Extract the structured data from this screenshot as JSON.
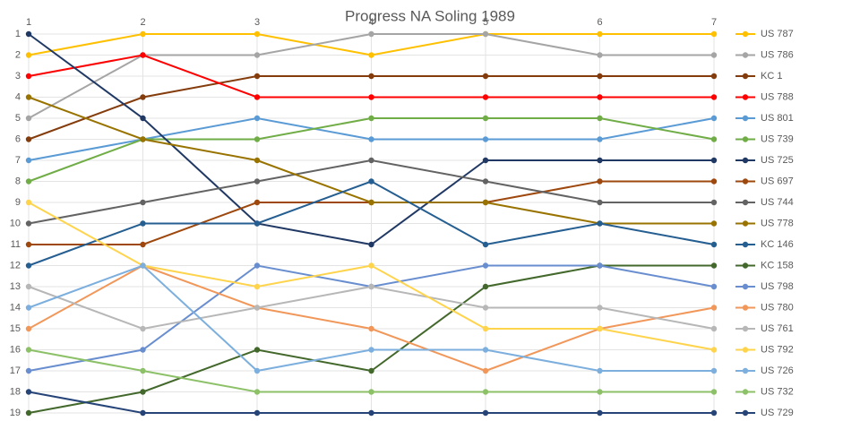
{
  "chart_data": {
    "type": "line",
    "title": "Progress NA Soling 1989",
    "categories": [
      "1",
      "2",
      "3",
      "4",
      "5",
      "6",
      "7"
    ],
    "ylim": [
      19,
      1
    ],
    "yticks": [
      1,
      2,
      3,
      4,
      5,
      6,
      7,
      8,
      9,
      10,
      11,
      12,
      13,
      14,
      15,
      16,
      17,
      18,
      19
    ],
    "grid": true,
    "legend": "right",
    "series": [
      {
        "name": "US 787",
        "color": "#ffc000",
        "values": [
          2,
          1,
          1,
          2,
          1,
          1,
          1
        ]
      },
      {
        "name": "US 786",
        "color": "#a5a5a5",
        "values": [
          5,
          2,
          2,
          1,
          1,
          2,
          2
        ]
      },
      {
        "name": "KC 1",
        "color": "#843c0c",
        "values": [
          6,
          4,
          3,
          3,
          3,
          3,
          3
        ]
      },
      {
        "name": "US 788",
        "color": "#ff0000",
        "values": [
          3,
          2,
          4,
          4,
          4,
          4,
          4
        ]
      },
      {
        "name": "US 801",
        "color": "#5b9bd5",
        "values": [
          7,
          6,
          5,
          6,
          6,
          6,
          5
        ]
      },
      {
        "name": "US 739",
        "color": "#70ad47",
        "values": [
          8,
          6,
          6,
          5,
          5,
          5,
          6
        ]
      },
      {
        "name": "US 725",
        "color": "#203864",
        "values": [
          1,
          5,
          10,
          11,
          7,
          7,
          7
        ]
      },
      {
        "name": "US 697",
        "color": "#9e480e",
        "values": [
          11,
          11,
          9,
          9,
          9,
          8,
          8
        ]
      },
      {
        "name": "US 744",
        "color": "#636363",
        "values": [
          10,
          9,
          8,
          7,
          8,
          9,
          9
        ]
      },
      {
        "name": "US 778",
        "color": "#997300",
        "values": [
          4,
          6,
          7,
          9,
          9,
          10,
          10
        ]
      },
      {
        "name": "KC 146",
        "color": "#255e91",
        "values": [
          12,
          10,
          10,
          8,
          11,
          10,
          11
        ]
      },
      {
        "name": "KC 158",
        "color": "#43682b",
        "values": [
          19,
          18,
          16,
          17,
          13,
          12,
          12
        ]
      },
      {
        "name": "US 798",
        "color": "#698ed0",
        "values": [
          17,
          16,
          12,
          13,
          12,
          12,
          13
        ]
      },
      {
        "name": "US 780",
        "color": "#f1975a",
        "values": [
          15,
          12,
          14,
          15,
          17,
          15,
          14
        ]
      },
      {
        "name": "US 761",
        "color": "#b7b7b7",
        "values": [
          13,
          15,
          14,
          13,
          14,
          14,
          15
        ]
      },
      {
        "name": "US 792",
        "color": "#ffd44d",
        "values": [
          9,
          12,
          13,
          12,
          15,
          15,
          16
        ]
      },
      {
        "name": "US 726",
        "color": "#7cafdd",
        "values": [
          14,
          12,
          17,
          16,
          16,
          17,
          17
        ]
      },
      {
        "name": "US 732",
        "color": "#8cc168",
        "values": [
          16,
          17,
          18,
          18,
          18,
          18,
          18
        ]
      },
      {
        "name": "US 729",
        "color": "#264478",
        "values": [
          18,
          19,
          19,
          19,
          19,
          19,
          19
        ]
      }
    ]
  }
}
